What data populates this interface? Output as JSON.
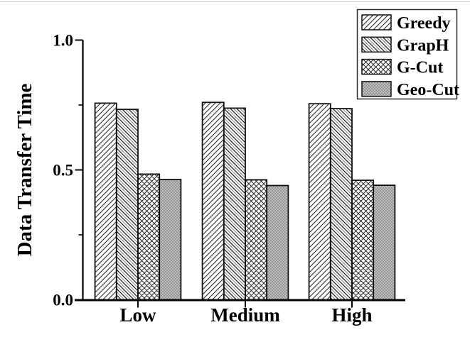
{
  "figure": {
    "background": "#ffffff"
  },
  "chart_data": {
    "type": "bar",
    "title": "",
    "xlabel": "",
    "ylabel": "Data Transfer Time",
    "categories": [
      "Low",
      "Medium",
      "High"
    ],
    "series": [
      {
        "name": "Greedy",
        "pattern": "diag-up",
        "values": [
          0.757,
          0.76,
          0.755
        ]
      },
      {
        "name": "GrapH",
        "pattern": "diag-down",
        "values": [
          0.733,
          0.738,
          0.736
        ]
      },
      {
        "name": "G-Cut",
        "pattern": "crosshatch",
        "values": [
          0.484,
          0.462,
          0.46
        ]
      },
      {
        "name": "Geo-Cut",
        "pattern": "gray-checker",
        "values": [
          0.463,
          0.44,
          0.441
        ]
      }
    ],
    "ylim": [
      0.0,
      1.0
    ],
    "yticks": [
      0.0,
      0.5,
      1.0
    ],
    "ytick_labels": [
      "0.0",
      "0.5",
      "1.0"
    ],
    "minor_yticks": [
      0.25,
      0.75
    ],
    "grid": false,
    "legend": {
      "position": "top-right",
      "entries": [
        "Greedy",
        "GrapH",
        "G-Cut",
        "Geo-Cut"
      ]
    },
    "colors": {
      "axis": "#000000",
      "bar_outline": "#111111",
      "hatch_dark": "#1f1f1f",
      "hatch_gray": "#9a9a9a",
      "geocut_light": "#bdbdbd",
      "geocut_dark": "#969696",
      "legend_border": "#2b2b2b"
    }
  }
}
